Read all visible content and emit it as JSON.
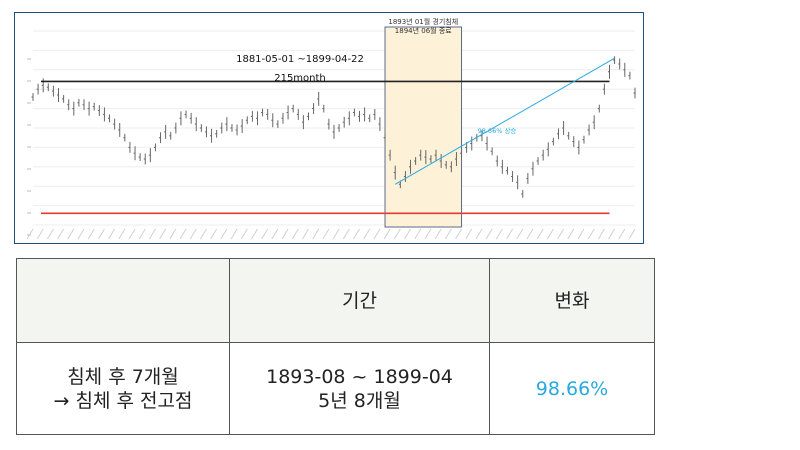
{
  "chart_data": {
    "type": "line",
    "title": "",
    "annotations": {
      "recession_note_line1": "1893년 01월 경기침체",
      "recession_note_line2": "1894년 06월 종료",
      "date_range": "1881-05-01 ~1899-04-22",
      "duration": "215month",
      "rise_label": "98.66% 상승"
    },
    "x_start": "1881-05",
    "x_end": "1899-04",
    "ylim": [
      0,
      1
    ],
    "series": [
      {
        "values": [
          0.66,
          0.7,
          0.72,
          0.71,
          0.69,
          0.67,
          0.65,
          0.62,
          0.6,
          0.63,
          0.62,
          0.6,
          0.61,
          0.59,
          0.57,
          0.55,
          0.52,
          0.49,
          0.45,
          0.4,
          0.37,
          0.35,
          0.34,
          0.36,
          0.4,
          0.45,
          0.48,
          0.46,
          0.5,
          0.55,
          0.57,
          0.55,
          0.52,
          0.5,
          0.48,
          0.46,
          0.47,
          0.5,
          0.52,
          0.5,
          0.49,
          0.51,
          0.54,
          0.56,
          0.55,
          0.58,
          0.57,
          0.54,
          0.52,
          0.55,
          0.58,
          0.6,
          0.57,
          0.53,
          0.56,
          0.6,
          0.65,
          0.6,
          0.52,
          0.48,
          0.5,
          0.53,
          0.55,
          0.58,
          0.56,
          0.57,
          0.55,
          0.57,
          0.52,
          0.45,
          0.36,
          0.27,
          0.21,
          0.25,
          0.3,
          0.33,
          0.36,
          0.35,
          0.34,
          0.36,
          0.33,
          0.31,
          0.3,
          0.34,
          0.37,
          0.4,
          0.42,
          0.45,
          0.46,
          0.42,
          0.38,
          0.33,
          0.3,
          0.28,
          0.25,
          0.22,
          0.16,
          0.24,
          0.29,
          0.33,
          0.36,
          0.39,
          0.43,
          0.47,
          0.5,
          0.46,
          0.43,
          0.4,
          0.44,
          0.49,
          0.53,
          0.6,
          0.7,
          0.79,
          0.85,
          0.83,
          0.8,
          0.77,
          0.68
        ]
      }
    ],
    "reference_lines": [
      {
        "name": "high",
        "value": 0.74,
        "color": "#222222"
      },
      {
        "name": "low",
        "value": 0.06,
        "color": "#e53935"
      }
    ],
    "shaded_region": {
      "start_index": 69,
      "end_index": 84,
      "color": "#fdf1d8"
    },
    "trend_line": {
      "start_index": 71,
      "start_value": 0.21,
      "end_index": 114,
      "end_value": 0.86,
      "color": "#29a9e0"
    },
    "grid": true
  },
  "table": {
    "header": {
      "col1": "",
      "col2": "기간",
      "col3": "변화"
    },
    "row": {
      "label": "침체 후 7개월\n→ 침체 후 전고점",
      "period": "1893-08 ~ 1899-04\n5년 8개월",
      "change": "98.66%"
    }
  }
}
